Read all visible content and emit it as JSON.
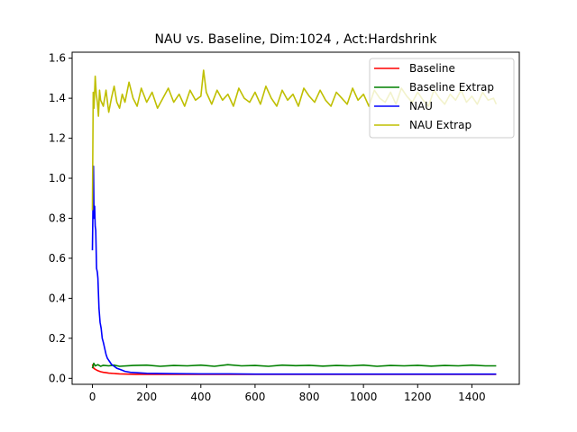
{
  "chart_data": {
    "type": "line",
    "title": "NAU vs. Baseline, Dim:1024 , Act:Hardshrink",
    "xlabel": "",
    "ylabel": "",
    "xlim": [
      -75,
      1575
    ],
    "ylim": [
      -0.03,
      1.63
    ],
    "xticks": [
      0,
      200,
      400,
      600,
      800,
      1000,
      1200,
      1400
    ],
    "yticks": [
      0.0,
      0.2,
      0.4,
      0.6,
      0.8,
      1.0,
      1.2,
      1.4,
      1.6
    ],
    "xtick_labels": [
      "0",
      "200",
      "400",
      "600",
      "800",
      "1000",
      "1200",
      "1400"
    ],
    "ytick_labels": [
      "0.0",
      "0.2",
      "0.4",
      "0.6",
      "0.8",
      "1.0",
      "1.2",
      "1.4",
      "1.6"
    ],
    "grid": false,
    "legend_position": "top-right",
    "series": [
      {
        "name": "Baseline",
        "color": "#ff0000",
        "x": [
          0,
          5,
          10,
          20,
          30,
          40,
          50,
          60,
          80,
          100,
          130,
          160,
          200,
          250,
          300,
          400,
          500,
          600,
          700,
          800,
          900,
          1000,
          1100,
          1200,
          1300,
          1400,
          1490
        ],
        "y": [
          0.07,
          0.05,
          0.045,
          0.038,
          0.033,
          0.03,
          0.028,
          0.026,
          0.024,
          0.022,
          0.021,
          0.02,
          0.02,
          0.02,
          0.02,
          0.02,
          0.02,
          0.02,
          0.02,
          0.02,
          0.02,
          0.02,
          0.02,
          0.02,
          0.02,
          0.02,
          0.02
        ]
      },
      {
        "name": "Baseline Extrap",
        "color": "#008000",
        "x": [
          0,
          5,
          10,
          20,
          30,
          40,
          60,
          80,
          100,
          150,
          200,
          250,
          300,
          350,
          400,
          450,
          500,
          550,
          600,
          650,
          700,
          750,
          800,
          850,
          900,
          950,
          1000,
          1050,
          1100,
          1150,
          1200,
          1250,
          1300,
          1350,
          1400,
          1450,
          1490
        ],
        "y": [
          0.05,
          0.075,
          0.062,
          0.068,
          0.06,
          0.065,
          0.062,
          0.066,
          0.06,
          0.064,
          0.066,
          0.06,
          0.064,
          0.062,
          0.066,
          0.06,
          0.068,
          0.062,
          0.064,
          0.06,
          0.066,
          0.063,
          0.065,
          0.061,
          0.064,
          0.062,
          0.066,
          0.06,
          0.064,
          0.062,
          0.065,
          0.061,
          0.064,
          0.062,
          0.066,
          0.062,
          0.062
        ]
      },
      {
        "name": "NAU",
        "color": "#0000ff",
        "x": [
          0,
          2,
          4,
          6,
          8,
          10,
          12,
          15,
          18,
          20,
          24,
          28,
          32,
          36,
          40,
          45,
          50,
          55,
          60,
          65,
          70,
          80,
          90,
          100,
          110,
          120,
          140,
          160,
          200,
          300,
          400,
          500,
          600,
          700,
          800,
          900,
          1000,
          1100,
          1200,
          1300,
          1400,
          1490
        ],
        "y": [
          0.64,
          0.85,
          1.06,
          0.8,
          0.86,
          0.76,
          0.74,
          0.55,
          0.53,
          0.5,
          0.35,
          0.28,
          0.25,
          0.2,
          0.18,
          0.15,
          0.12,
          0.1,
          0.09,
          0.08,
          0.07,
          0.06,
          0.05,
          0.045,
          0.04,
          0.035,
          0.03,
          0.028,
          0.025,
          0.023,
          0.022,
          0.022,
          0.021,
          0.021,
          0.021,
          0.021,
          0.021,
          0.021,
          0.021,
          0.021,
          0.021,
          0.021
        ]
      },
      {
        "name": "NAU Extrap",
        "color": "#bfbf00",
        "x": [
          0,
          3,
          6,
          10,
          14,
          18,
          22,
          26,
          30,
          40,
          50,
          60,
          70,
          80,
          90,
          100,
          110,
          120,
          135,
          150,
          165,
          180,
          200,
          220,
          240,
          260,
          280,
          300,
          320,
          340,
          360,
          380,
          400,
          410,
          420,
          440,
          460,
          480,
          500,
          520,
          540,
          560,
          580,
          600,
          620,
          640,
          660,
          680,
          700,
          720,
          740,
          760,
          780,
          800,
          820,
          840,
          860,
          880,
          900,
          920,
          940,
          960,
          980,
          1000,
          1020,
          1040,
          1060,
          1080,
          1100,
          1120,
          1140,
          1160,
          1180,
          1200,
          1220,
          1240,
          1260,
          1280,
          1300,
          1320,
          1340,
          1360,
          1380,
          1400,
          1420,
          1440,
          1460,
          1480,
          1490
        ],
        "y": [
          0.84,
          1.43,
          1.35,
          1.51,
          1.42,
          1.38,
          1.31,
          1.44,
          1.39,
          1.36,
          1.44,
          1.33,
          1.4,
          1.46,
          1.38,
          1.35,
          1.42,
          1.38,
          1.48,
          1.4,
          1.36,
          1.45,
          1.38,
          1.43,
          1.35,
          1.4,
          1.45,
          1.38,
          1.42,
          1.36,
          1.44,
          1.39,
          1.41,
          1.54,
          1.43,
          1.37,
          1.44,
          1.39,
          1.42,
          1.36,
          1.45,
          1.4,
          1.38,
          1.43,
          1.37,
          1.46,
          1.4,
          1.36,
          1.44,
          1.39,
          1.42,
          1.36,
          1.45,
          1.41,
          1.38,
          1.44,
          1.39,
          1.36,
          1.43,
          1.4,
          1.37,
          1.45,
          1.39,
          1.42,
          1.36,
          1.44,
          1.4,
          1.38,
          1.43,
          1.37,
          1.45,
          1.41,
          1.38,
          1.43,
          1.39,
          1.36,
          1.44,
          1.4,
          1.37,
          1.42,
          1.39,
          1.44,
          1.38,
          1.41,
          1.37,
          1.43,
          1.39,
          1.4,
          1.37
        ]
      }
    ]
  }
}
